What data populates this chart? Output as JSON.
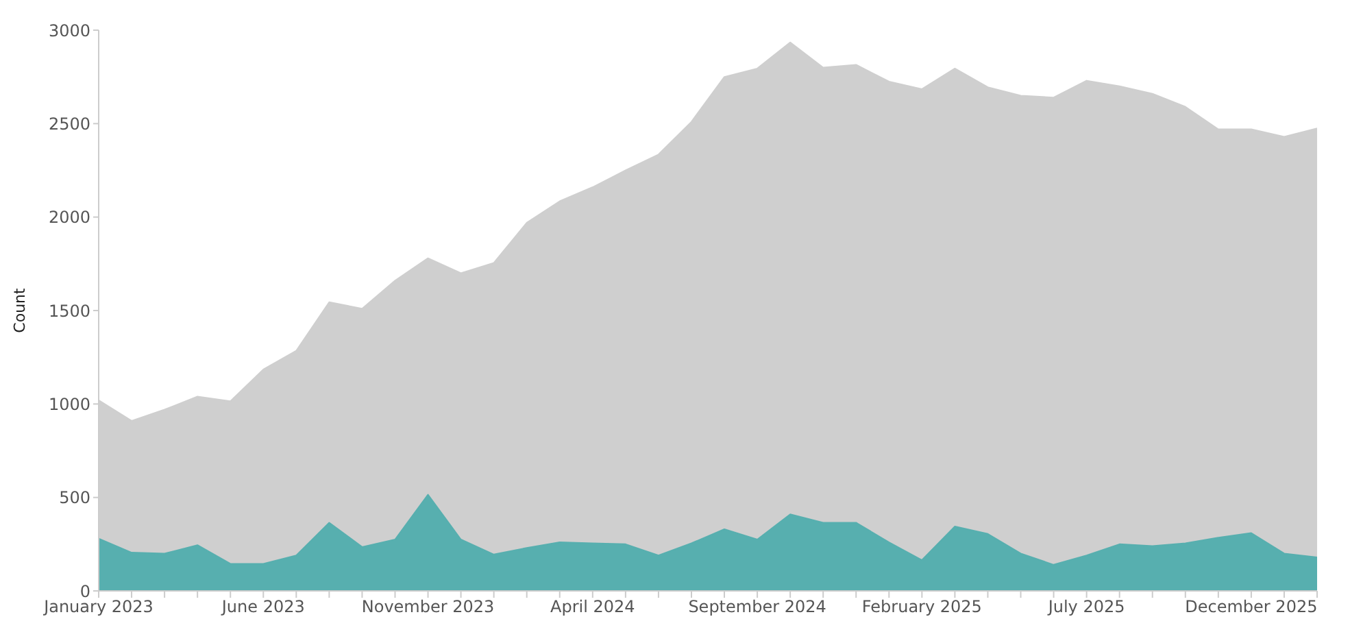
{
  "chart_data": {
    "type": "area",
    "ylabel": "Count",
    "x": [
      "2023-01",
      "2023-02",
      "2023-03",
      "2023-04",
      "2023-05",
      "2023-06",
      "2023-07",
      "2023-08",
      "2023-09",
      "2023-10",
      "2023-11",
      "2023-12",
      "2024-01",
      "2024-02",
      "2024-03",
      "2024-04",
      "2024-05",
      "2024-06",
      "2024-07",
      "2024-08",
      "2024-09",
      "2024-10",
      "2024-11",
      "2024-12",
      "2025-01",
      "2025-02",
      "2025-03",
      "2025-04",
      "2025-05",
      "2025-06",
      "2025-07",
      "2025-08",
      "2025-09",
      "2025-10",
      "2025-11",
      "2025-12",
      "2026-01",
      "2026-02"
    ],
    "series": [
      {
        "color": "#cfcfcf",
        "values": [
          1020,
          910,
          970,
          1040,
          1015,
          1185,
          1285,
          1545,
          1510,
          1660,
          1780,
          1700,
          1755,
          1970,
          2085,
          2160,
          2250,
          2335,
          2510,
          2750,
          2795,
          2935,
          2800,
          2815,
          2725,
          2685,
          2795,
          2695,
          2650,
          2640,
          2730,
          2700,
          2660,
          2590,
          2470,
          2470,
          2430,
          2475
        ]
      },
      {
        "color": "#57afaf",
        "values": [
          280,
          205,
          200,
          245,
          145,
          145,
          190,
          365,
          235,
          275,
          515,
          275,
          195,
          230,
          260,
          255,
          250,
          190,
          255,
          330,
          275,
          410,
          365,
          365,
          260,
          165,
          345,
          305,
          200,
          140,
          190,
          250,
          240,
          255,
          285,
          310,
          200,
          180
        ]
      }
    ],
    "xlim": [
      "2023-01",
      "2026-02"
    ],
    "xticks": [
      {
        "value": "2023-01",
        "label": "January 2023"
      },
      {
        "value": "2023-02",
        "label": null
      },
      {
        "value": "2023-03",
        "label": null
      },
      {
        "value": "2023-04",
        "label": null
      },
      {
        "value": "2023-05",
        "label": null
      },
      {
        "value": "2023-06",
        "label": "June 2023"
      },
      {
        "value": "2023-07",
        "label": null
      },
      {
        "value": "2023-08",
        "label": null
      },
      {
        "value": "2023-09",
        "label": null
      },
      {
        "value": "2023-10",
        "label": null
      },
      {
        "value": "2023-11",
        "label": "November 2023"
      },
      {
        "value": "2023-12",
        "label": null
      },
      {
        "value": "2024-01",
        "label": null
      },
      {
        "value": "2024-02",
        "label": null
      },
      {
        "value": "2024-03",
        "label": null
      },
      {
        "value": "2024-04",
        "label": "April 2024"
      },
      {
        "value": "2024-05",
        "label": null
      },
      {
        "value": "2024-06",
        "label": null
      },
      {
        "value": "2024-07",
        "label": null
      },
      {
        "value": "2024-08",
        "label": null
      },
      {
        "value": "2024-09",
        "label": "September 2024"
      },
      {
        "value": "2024-10",
        "label": null
      },
      {
        "value": "2024-11",
        "label": null
      },
      {
        "value": "2024-12",
        "label": null
      },
      {
        "value": "2025-01",
        "label": null
      },
      {
        "value": "2025-02",
        "label": "February 2025"
      },
      {
        "value": "2025-03",
        "label": null
      },
      {
        "value": "2025-04",
        "label": null
      },
      {
        "value": "2025-05",
        "label": null
      },
      {
        "value": "2025-06",
        "label": null
      },
      {
        "value": "2025-07",
        "label": "July 2025"
      },
      {
        "value": "2025-08",
        "label": null
      },
      {
        "value": "2025-09",
        "label": null
      },
      {
        "value": "2025-10",
        "label": null
      },
      {
        "value": "2025-11",
        "label": null
      },
      {
        "value": "2025-12",
        "label": "December 2025"
      },
      {
        "value": "2026-01",
        "label": null
      },
      {
        "value": "2026-02",
        "label": null
      }
    ],
    "ylim": [
      0,
      3000
    ],
    "yticks": [
      0,
      500,
      1000,
      1500,
      2000,
      2500,
      3000
    ],
    "grid": false,
    "legend": false
  }
}
